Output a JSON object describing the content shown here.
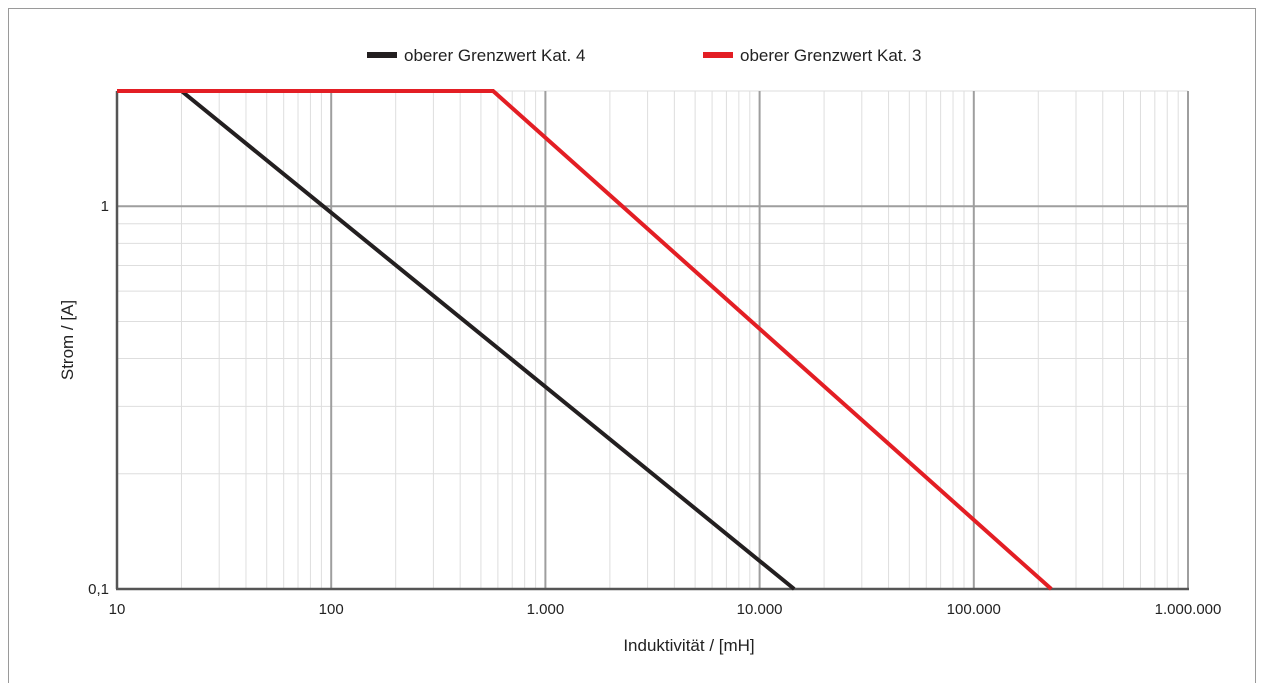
{
  "chart_data": {
    "type": "line",
    "xlabel": "Induktivität / [mH]",
    "ylabel": "Strom / [A]",
    "x_scale": "log",
    "y_scale": "log",
    "xlim": [
      10,
      1000000
    ],
    "ylim": [
      0.1,
      2
    ],
    "x_ticks": [
      {
        "value": 10,
        "label": "10"
      },
      {
        "value": 100,
        "label": "100"
      },
      {
        "value": 1000,
        "label": "1.000"
      },
      {
        "value": 10000,
        "label": "10.000"
      },
      {
        "value": 100000,
        "label": "100.000"
      },
      {
        "value": 1000000,
        "label": "1.000.000"
      }
    ],
    "y_ticks": [
      {
        "value": 0.1,
        "label": "0,1"
      },
      {
        "value": 1,
        "label": "1"
      }
    ],
    "grid": true,
    "legend_position": "top-center",
    "series": [
      {
        "name": "oberer Grenzwert Kat. 4",
        "color": "#231f20",
        "points": [
          [
            10,
            2
          ],
          [
            20,
            2
          ],
          [
            14500,
            0.1
          ]
        ]
      },
      {
        "name": "oberer Grenzwert Kat. 3",
        "color": "#e31e24",
        "points": [
          [
            10,
            2
          ],
          [
            570,
            2
          ],
          [
            230000,
            0.1
          ]
        ]
      }
    ]
  }
}
